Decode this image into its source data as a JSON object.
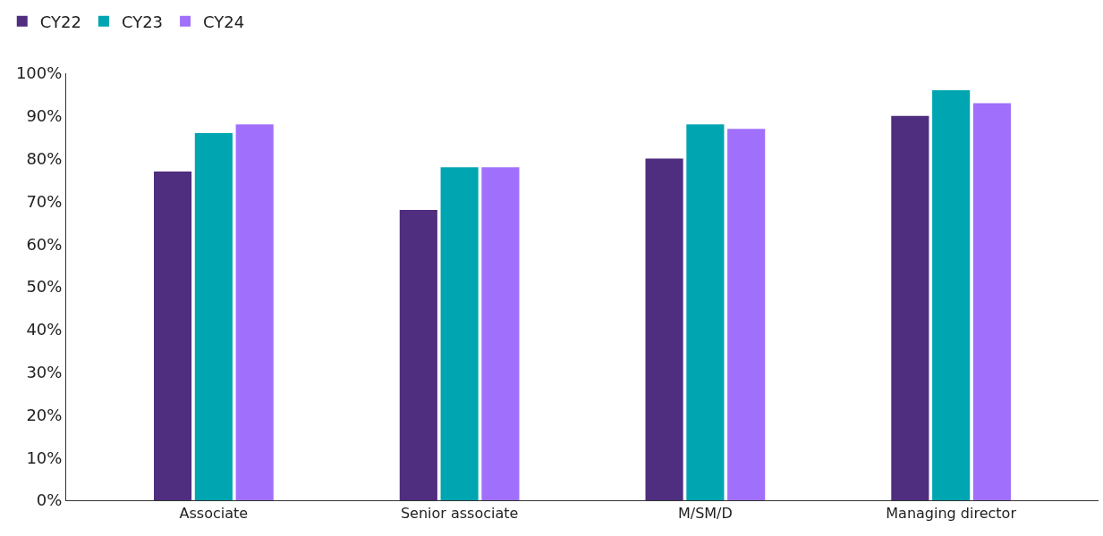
{
  "chart_data": {
    "type": "bar",
    "categories": [
      "Associate",
      "Senior associate",
      "M/SM/D",
      "Managing director"
    ],
    "series": [
      {
        "name": "CY22",
        "color": "#4f2d7f",
        "values": [
          77,
          68,
          80,
          90
        ]
      },
      {
        "name": "CY23",
        "color": "#00a5b2",
        "values": [
          86,
          78,
          88,
          96
        ]
      },
      {
        "name": "CY24",
        "color": "#a070fc",
        "values": [
          88,
          78,
          87,
          93
        ]
      }
    ],
    "ylim": [
      0,
      100
    ],
    "yticks": [
      {
        "value": 0,
        "label": "0%"
      },
      {
        "value": 10,
        "label": "10%"
      },
      {
        "value": 20,
        "label": "20%"
      },
      {
        "value": 30,
        "label": "30%"
      },
      {
        "value": 40,
        "label": "40%"
      },
      {
        "value": 50,
        "label": "50%"
      },
      {
        "value": 60,
        "label": "60%"
      },
      {
        "value": 70,
        "label": "70%"
      },
      {
        "value": 80,
        "label": "80%"
      },
      {
        "value": 90,
        "label": "90%"
      },
      {
        "value": 100,
        "label": "100%"
      }
    ],
    "legend": "top left"
  }
}
